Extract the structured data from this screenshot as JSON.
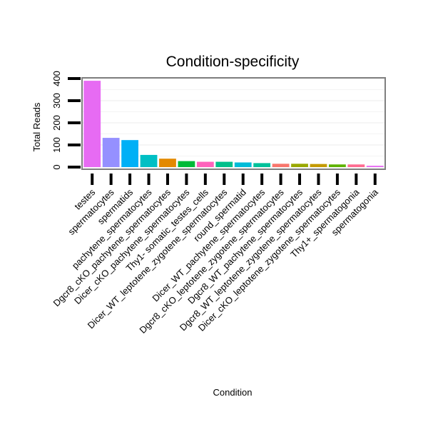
{
  "chart_data": {
    "type": "bar",
    "title": "Condition-specificity",
    "xlabel": "Condition",
    "ylabel": "Total Reads",
    "ylim": [
      0,
      400
    ],
    "yticks": [
      0,
      100,
      200,
      300,
      400
    ],
    "grid": true,
    "legend": "none",
    "categories": [
      "testes",
      "spermatocytes",
      "spermatids",
      "pachytene_spermatocytes",
      "Dgcr8_cKO_pachytene_spermatocytes",
      "Dicer_cKO_pachytene_spermatocytes",
      "Thy1- somatic_testes_cells",
      "Dicer_WT_leptotene_zygotene_spermatocytes",
      "round_spermatid",
      "Dicer_WT_pachytene_spermatocytes",
      "Dgcr8_cKO_leptotene_zygotene_spermatocytes",
      "Dgcr8_WT_pachytene_spermatocytes",
      "Dgcr8_WT_leptotene_zygotene_spermatocytes",
      "Dicer_cKO_leptotene_zygotene_spermatocytes",
      "Thy1+_spermatogonia",
      "spermatogonia"
    ],
    "values": [
      390,
      132,
      122,
      55,
      38,
      27,
      24,
      24,
      21,
      18,
      15,
      15,
      14,
      12,
      12,
      6
    ],
    "colors": [
      "#E76BF3",
      "#9590FF",
      "#00B0F6",
      "#00BFC4",
      "#E38900",
      "#00BA38",
      "#FF62BC",
      "#00C08B",
      "#00BCD8",
      "#00C19A",
      "#F8766D",
      "#99A800",
      "#C49A00",
      "#5EB300",
      "#FF6C91",
      "#E76BF3"
    ]
  }
}
